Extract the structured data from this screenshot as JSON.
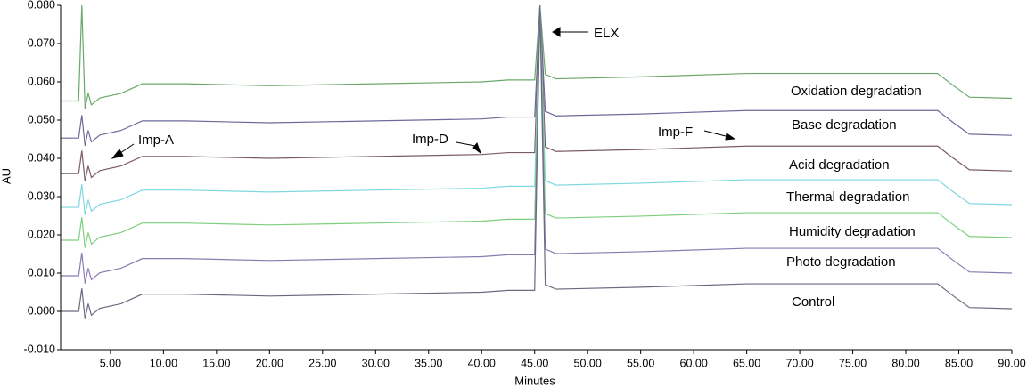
{
  "chart_data": {
    "type": "line",
    "xlabel": "Minutes",
    "ylabel": "AU",
    "x": [
      0.3,
      2.0,
      2.3,
      2.6,
      2.9,
      3.2,
      4.0,
      6.0,
      8.0,
      12.0,
      20.0,
      30.0,
      40.0,
      42.5,
      45.0,
      45.5,
      46.0,
      47.0,
      55.0,
      65.0,
      75.0,
      83.0,
      84.5,
      86.0,
      90.0
    ],
    "series": [
      {
        "name": "Oxidation degradation",
        "color": "#6aa86a",
        "values": [
          0.055,
          0.055,
          0.08,
          0.053,
          0.057,
          0.054,
          0.0558,
          0.057,
          0.0595,
          0.0595,
          0.059,
          0.0595,
          0.06,
          0.0605,
          0.0605,
          0.08,
          0.062,
          0.0608,
          0.0613,
          0.0622,
          0.0622,
          0.0622,
          0.059,
          0.056,
          0.0557
        ]
      },
      {
        "name": "Base degradation",
        "color": "#6a6a9a",
        "values": [
          0.0453,
          0.0453,
          0.0513,
          0.0433,
          0.0473,
          0.0443,
          0.0461,
          0.0473,
          0.0498,
          0.0498,
          0.0493,
          0.0498,
          0.0503,
          0.0508,
          0.0508,
          0.08,
          0.0523,
          0.0511,
          0.0516,
          0.0525,
          0.0525,
          0.0525,
          0.0493,
          0.0463,
          0.046
        ]
      },
      {
        "name": "Acid degradation",
        "color": "#7a5a6a",
        "values": [
          0.036,
          0.036,
          0.042,
          0.034,
          0.038,
          0.035,
          0.0368,
          0.038,
          0.0405,
          0.0405,
          0.04,
          0.0405,
          0.041,
          0.0415,
          0.0415,
          0.08,
          0.043,
          0.0418,
          0.0423,
          0.0432,
          0.0432,
          0.0432,
          0.04,
          0.037,
          0.0367
        ]
      },
      {
        "name": "Thermal degradation",
        "color": "#7fd8e0",
        "values": [
          0.0272,
          0.0272,
          0.0332,
          0.0252,
          0.0292,
          0.0262,
          0.028,
          0.0292,
          0.0317,
          0.0317,
          0.0312,
          0.0317,
          0.0322,
          0.0327,
          0.0327,
          0.08,
          0.0342,
          0.033,
          0.0335,
          0.0344,
          0.0344,
          0.0344,
          0.0312,
          0.0282,
          0.0279
        ]
      },
      {
        "name": "Humidity degradation",
        "color": "#7ed07e",
        "values": [
          0.0186,
          0.0186,
          0.0246,
          0.0166,
          0.0206,
          0.0176,
          0.0194,
          0.0206,
          0.0231,
          0.0231,
          0.0226,
          0.0231,
          0.0236,
          0.0241,
          0.0241,
          0.08,
          0.0256,
          0.0244,
          0.0249,
          0.0258,
          0.0258,
          0.0258,
          0.0226,
          0.0196,
          0.0193
        ]
      },
      {
        "name": "Photo degradation",
        "color": "#8a7ab0",
        "values": [
          0.0093,
          0.0093,
          0.0153,
          0.0073,
          0.0113,
          0.0083,
          0.0101,
          0.0113,
          0.0138,
          0.0138,
          0.0133,
          0.0138,
          0.0143,
          0.0148,
          0.0148,
          0.08,
          0.0163,
          0.0151,
          0.0156,
          0.0165,
          0.0165,
          0.0165,
          0.0133,
          0.0103,
          0.01
        ]
      },
      {
        "name": "Control",
        "color": "#6a6a80",
        "values": [
          0,
          0,
          0.006,
          -0.002,
          0.002,
          -0.001,
          0.0008,
          0.002,
          0.0045,
          0.0045,
          0.004,
          0.0045,
          0.005,
          0.0055,
          0.0055,
          0.08,
          0.007,
          0.0058,
          0.0063,
          0.0072,
          0.0072,
          0.0072,
          0.004,
          0.001,
          0.0007
        ]
      }
    ],
    "annotations": [
      "ELX",
      "Imp-A",
      "Imp-D",
      "Imp-F"
    ],
    "xlim": [
      0.3,
      90
    ],
    "xticks": [
      {
        "value": 5,
        "label": "5.00"
      },
      {
        "value": 10,
        "label": "10.00"
      },
      {
        "value": 15,
        "label": "15.00"
      },
      {
        "value": 20,
        "label": "20.00"
      },
      {
        "value": 25,
        "label": "25.00"
      },
      {
        "value": 30,
        "label": "30.00"
      },
      {
        "value": 35,
        "label": "35.00"
      },
      {
        "value": 40,
        "label": "40.00"
      },
      {
        "value": 45,
        "label": "45.00"
      },
      {
        "value": 50,
        "label": "50.00"
      },
      {
        "value": 55,
        "label": "55.00"
      },
      {
        "value": 60,
        "label": "60.00"
      },
      {
        "value": 65,
        "label": "65.00"
      },
      {
        "value": 70,
        "label": "70.00"
      },
      {
        "value": 75,
        "label": "75.00"
      },
      {
        "value": 80,
        "label": "80.00"
      },
      {
        "value": 85,
        "label": "85.00"
      },
      {
        "value": 90,
        "label": "90.00"
      }
    ],
    "ylim": [
      -0.01,
      0.08
    ],
    "yticks": [
      {
        "value": -0.01,
        "label": "-0.010"
      },
      {
        "value": 0,
        "label": "0.000"
      },
      {
        "value": 0.01,
        "label": "0.010"
      },
      {
        "value": 0.02,
        "label": "0.020"
      },
      {
        "value": 0.03,
        "label": "0.030"
      },
      {
        "value": 0.04,
        "label": "0.040"
      },
      {
        "value": 0.05,
        "label": "0.050"
      },
      {
        "value": 0.06,
        "label": "0.060"
      },
      {
        "value": 0.07,
        "label": "0.070"
      },
      {
        "value": 0.08,
        "label": "0.080"
      }
    ],
    "grid": false
  }
}
